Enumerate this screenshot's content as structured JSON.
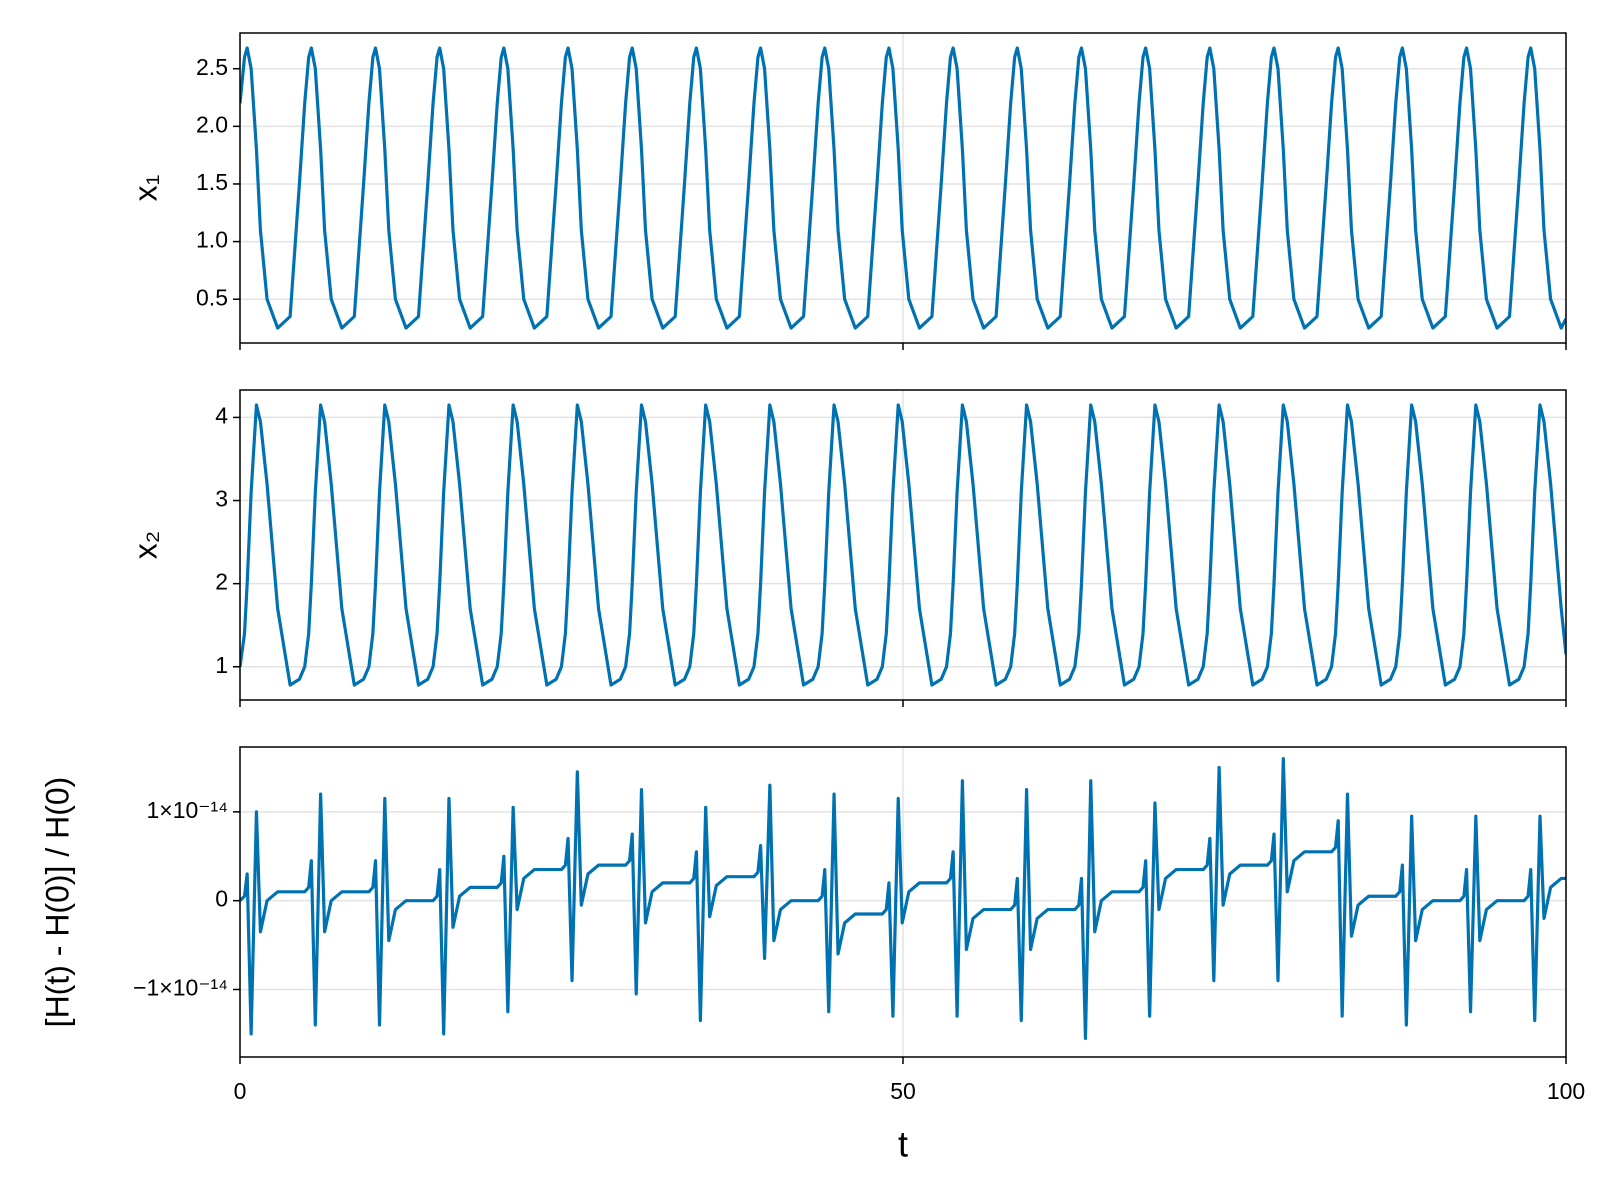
{
  "chart_data": {
    "type": "line",
    "xlabel": "t",
    "xlim": [
      0,
      100
    ],
    "xticks": [
      0,
      50,
      100
    ],
    "grid": true,
    "color": "#0072b2",
    "x": [
      0,
      0.34,
      0.54,
      0.84,
      1.24,
      1.54,
      2.04,
      2.84,
      3.78,
      4.48,
      4.88,
      5.18,
      5.38,
      5.68,
      6.08,
      6.38,
      6.88,
      7.68,
      8.62,
      9.32,
      9.72,
      10.02,
      10.22,
      10.52,
      10.92,
      11.22,
      11.72,
      12.52,
      13.46,
      14.16,
      14.56,
      14.86,
      15.06,
      15.36,
      15.76,
      16.06,
      16.56,
      17.36,
      18.3,
      19.0,
      19.4,
      19.7,
      19.9,
      20.2,
      20.6,
      20.9,
      21.4,
      22.2,
      23.14,
      23.84,
      24.24,
      24.54,
      24.74,
      25.04,
      25.44,
      25.74,
      26.24,
      27.04,
      27.98,
      28.68,
      29.08,
      29.38,
      29.58,
      29.88,
      30.28,
      30.58,
      31.08,
      31.88,
      32.82,
      33.52,
      33.92,
      34.22,
      34.42,
      34.72,
      35.12,
      35.42,
      35.92,
      36.72,
      37.66,
      38.36,
      38.76,
      39.06,
      39.26,
      39.56,
      39.96,
      40.26,
      40.76,
      41.56,
      42.5,
      43.2,
      43.6,
      43.9,
      44.1,
      44.4,
      44.8,
      45.1,
      45.6,
      46.4,
      47.34,
      48.04,
      48.44,
      48.74,
      48.94,
      49.24,
      49.64,
      49.94,
      50.44,
      51.24,
      52.18,
      52.88,
      53.28,
      53.58,
      53.78,
      54.08,
      54.48,
      54.78,
      55.28,
      56.08,
      57.02,
      57.72,
      58.12,
      58.42,
      58.62,
      58.92,
      59.32,
      59.62,
      60.12,
      60.92,
      61.86,
      62.56,
      62.96,
      63.26,
      63.46,
      63.76,
      64.16,
      64.46,
      64.96,
      65.76,
      66.7,
      67.4,
      67.8,
      68.1,
      68.3,
      68.6,
      69.0,
      69.3,
      69.8,
      70.6,
      71.54,
      72.24,
      72.64,
      72.94,
      73.14,
      73.44,
      73.84,
      74.14,
      74.64,
      75.44,
      76.38,
      77.08,
      77.48,
      77.78,
      77.98,
      78.28,
      78.68,
      78.98,
      79.48,
      80.28,
      81.22,
      81.92,
      82.32,
      82.62,
      82.82,
      83.12,
      83.52,
      83.82,
      84.32,
      85.12,
      86.06,
      86.76,
      87.16,
      87.46,
      87.66,
      87.96,
      88.36,
      88.66,
      89.16,
      89.96,
      90.9,
      91.6,
      92.0,
      92.3,
      92.5,
      92.8,
      93.2,
      93.5,
      94.0,
      94.8,
      95.74,
      96.44,
      96.84,
      97.14,
      97.34,
      97.64,
      98.04,
      98.34,
      98.84,
      99.64,
      100
    ],
    "panels": [
      {
        "ylabel": "x₁",
        "ylim": [
          0.12,
          2.81
        ],
        "yticks": [
          0.5,
          {
            "value": 1,
            "label": "1.0"
          },
          1.5,
          {
            "value": 2,
            "label": "2.0"
          },
          2.5
        ],
        "values": [
          2.2,
          2.6,
          2.68,
          2.5,
          1.8,
          1.1,
          0.5,
          0.25,
          0.35,
          1.5,
          2.2,
          2.6,
          2.68,
          2.5,
          1.8,
          1.1,
          0.5,
          0.25,
          0.35,
          1.5,
          2.2,
          2.6,
          2.68,
          2.5,
          1.8,
          1.1,
          0.5,
          0.25,
          0.35,
          1.5,
          2.2,
          2.6,
          2.68,
          2.5,
          1.8,
          1.1,
          0.5,
          0.25,
          0.35,
          1.5,
          2.2,
          2.6,
          2.68,
          2.5,
          1.8,
          1.1,
          0.5,
          0.25,
          0.35,
          1.5,
          2.2,
          2.6,
          2.68,
          2.5,
          1.8,
          1.1,
          0.5,
          0.25,
          0.35,
          1.5,
          2.2,
          2.6,
          2.68,
          2.5,
          1.8,
          1.1,
          0.5,
          0.25,
          0.35,
          1.5,
          2.2,
          2.6,
          2.68,
          2.5,
          1.8,
          1.1,
          0.5,
          0.25,
          0.35,
          1.5,
          2.2,
          2.6,
          2.68,
          2.5,
          1.8,
          1.1,
          0.5,
          0.25,
          0.35,
          1.5,
          2.2,
          2.6,
          2.68,
          2.5,
          1.8,
          1.1,
          0.5,
          0.25,
          0.35,
          1.5,
          2.2,
          2.6,
          2.68,
          2.5,
          1.8,
          1.1,
          0.5,
          0.25,
          0.35,
          1.5,
          2.2,
          2.6,
          2.68,
          2.5,
          1.8,
          1.1,
          0.5,
          0.25,
          0.35,
          1.5,
          2.2,
          2.6,
          2.68,
          2.5,
          1.8,
          1.1,
          0.5,
          0.25,
          0.35,
          1.5,
          2.2,
          2.6,
          2.68,
          2.5,
          1.8,
          1.1,
          0.5,
          0.25,
          0.35,
          1.5,
          2.2,
          2.6,
          2.68,
          2.5,
          1.8,
          1.1,
          0.5,
          0.25,
          0.35,
          1.5,
          2.2,
          2.6,
          2.68,
          2.5,
          1.8,
          1.1,
          0.5,
          0.25,
          0.35,
          1.5,
          2.2,
          2.6,
          2.68,
          2.5,
          1.8,
          1.1,
          0.5,
          0.25,
          0.35,
          1.5,
          2.2,
          2.6,
          2.68,
          2.5,
          1.8,
          1.1,
          0.5,
          0.25,
          0.35,
          1.5,
          2.2,
          2.6,
          2.68,
          2.5,
          1.8,
          1.1,
          0.5,
          0.25,
          0.35,
          1.5,
          2.2,
          2.6,
          2.68,
          2.5,
          1.8,
          1.1,
          0.5,
          0.25,
          0.35,
          1.5,
          2.2,
          2.6,
          2.68,
          2.5,
          1.8,
          1.1,
          0.5,
          0.25,
          0.33
        ]
      },
      {
        "ylabel": "x₂",
        "ylim": [
          0.6,
          4.33
        ],
        "yticks": [
          1,
          2,
          3,
          4
        ],
        "values": [
          1,
          1.4,
          2.0,
          3.1,
          4.15,
          3.95,
          3.2,
          1.7,
          0.78,
          0.85,
          1.0,
          1.4,
          2.0,
          3.1,
          4.15,
          3.95,
          3.2,
          1.7,
          0.78,
          0.85,
          1.0,
          1.4,
          2.0,
          3.1,
          4.15,
          3.95,
          3.2,
          1.7,
          0.78,
          0.85,
          1.0,
          1.4,
          2.0,
          3.1,
          4.15,
          3.95,
          3.2,
          1.7,
          0.78,
          0.85,
          1.0,
          1.4,
          2.0,
          3.1,
          4.15,
          3.95,
          3.2,
          1.7,
          0.78,
          0.85,
          1.0,
          1.4,
          2.0,
          3.1,
          4.15,
          3.95,
          3.2,
          1.7,
          0.78,
          0.85,
          1.0,
          1.4,
          2.0,
          3.1,
          4.15,
          3.95,
          3.2,
          1.7,
          0.78,
          0.85,
          1.0,
          1.4,
          2.0,
          3.1,
          4.15,
          3.95,
          3.2,
          1.7,
          0.78,
          0.85,
          1.0,
          1.4,
          2.0,
          3.1,
          4.15,
          3.95,
          3.2,
          1.7,
          0.78,
          0.85,
          1.0,
          1.4,
          2.0,
          3.1,
          4.15,
          3.95,
          3.2,
          1.7,
          0.78,
          0.85,
          1.0,
          1.4,
          2.0,
          3.1,
          4.15,
          3.95,
          3.2,
          1.7,
          0.78,
          0.85,
          1.0,
          1.4,
          2.0,
          3.1,
          4.15,
          3.95,
          3.2,
          1.7,
          0.78,
          0.85,
          1.0,
          1.4,
          2.0,
          3.1,
          4.15,
          3.95,
          3.2,
          1.7,
          0.78,
          0.85,
          1.0,
          1.4,
          2.0,
          3.1,
          4.15,
          3.95,
          3.2,
          1.7,
          0.78,
          0.85,
          1.0,
          1.4,
          2.0,
          3.1,
          4.15,
          3.95,
          3.2,
          1.7,
          0.78,
          0.85,
          1.0,
          1.4,
          2.0,
          3.1,
          4.15,
          3.95,
          3.2,
          1.7,
          0.78,
          0.85,
          1.0,
          1.4,
          2.0,
          3.1,
          4.15,
          3.95,
          3.2,
          1.7,
          0.78,
          0.85,
          1.0,
          1.4,
          2.0,
          3.1,
          4.15,
          3.95,
          3.2,
          1.7,
          0.78,
          0.85,
          1.0,
          1.4,
          2.0,
          3.1,
          4.15,
          3.95,
          3.2,
          1.7,
          0.78,
          0.85,
          1.0,
          1.4,
          2.0,
          3.1,
          4.15,
          3.95,
          3.2,
          1.7,
          0.78,
          0.85,
          1.0,
          1.4,
          2.0,
          3.1,
          4.15,
          3.95,
          3.2,
          1.7,
          1.15
        ]
      },
      {
        "ylabel": "[H(t) - H(0)] / H(0)",
        "ylim": [
          -1.76e-14,
          1.73e-14
        ],
        "yticks": [
          {
            "value": -1e-14,
            "label": "−1×10⁻¹⁴"
          },
          0,
          {
            "value": 1e-14,
            "label": "1×10⁻¹⁴"
          }
        ],
        "values": [
          0,
          5e-16,
          3e-15,
          -1.5e-14,
          1e-14,
          -3.5e-15,
          0,
          1e-15,
          1e-15,
          1e-15,
          1e-15,
          1.5e-15,
          4.5e-15,
          -1.4e-14,
          1.2e-14,
          -3.5e-15,
          0,
          1e-15,
          1e-15,
          1e-15,
          1e-15,
          1.5e-15,
          4.5e-15,
          -1.4e-14,
          1.15e-14,
          -4.5e-15,
          -1e-15,
          0,
          0,
          0,
          0,
          5e-16,
          3.5e-15,
          -1.5e-14,
          1.15e-14,
          -3e-15,
          5e-16,
          1.5e-15,
          1.5e-15,
          1.5e-15,
          1.5e-15,
          2e-15,
          5e-15,
          -1.25e-14,
          1.05e-14,
          -1e-15,
          2.5e-15,
          3.5e-15,
          3.5e-15,
          3.5e-15,
          3.5e-15,
          4e-15,
          7e-15,
          -9e-15,
          1.45e-14,
          -5e-16,
          3e-15,
          4e-15,
          4e-15,
          4e-15,
          4e-15,
          4.5e-15,
          7.5e-15,
          -1.05e-14,
          1.25e-14,
          -2.5e-15,
          1e-15,
          2e-15,
          2e-15,
          2e-15,
          2e-15,
          2.5e-15,
          5.5e-15,
          -1.35e-14,
          1.05e-14,
          -1.8e-15,
          1.7e-15,
          2.7e-15,
          2.7e-15,
          2.7e-15,
          2.7e-15,
          3.2e-15,
          6.2e-15,
          -6.5e-15,
          1.3e-14,
          -4.5e-15,
          -1e-15,
          0,
          0,
          0,
          0,
          5e-16,
          3.5e-15,
          -1.25e-14,
          1.2e-14,
          -6e-15,
          -2.5e-15,
          -1.5e-15,
          -1.5e-15,
          -1.5e-15,
          -1.5e-15,
          -1e-15,
          2e-15,
          -1.3e-14,
          1.15e-14,
          -2.5e-15,
          1e-15,
          2e-15,
          2e-15,
          2e-15,
          2e-15,
          2.5e-15,
          5.5e-15,
          -1.3e-14,
          1.35e-14,
          -5.5e-15,
          -2e-15,
          -1e-15,
          -1e-15,
          -1e-15,
          -1e-15,
          -5e-16,
          2.5e-15,
          -1.35e-14,
          1.25e-14,
          -5.5e-15,
          -2e-15,
          -1e-15,
          -1e-15,
          -1e-15,
          -1e-15,
          -5e-16,
          2.5e-15,
          -1.55e-14,
          1.35e-14,
          -3.5e-15,
          0,
          1e-15,
          1e-15,
          1e-15,
          1e-15,
          1.5e-15,
          4.5e-15,
          -1.3e-14,
          1.1e-14,
          -1e-15,
          2.5e-15,
          3.5e-15,
          3.5e-15,
          3.5e-15,
          3.5e-15,
          4e-15,
          7e-15,
          -9e-15,
          1.5e-14,
          -5e-16,
          3e-15,
          4e-15,
          4e-15,
          4e-15,
          4e-15,
          4.5e-15,
          7.5e-15,
          -9e-15,
          1.6e-14,
          1e-15,
          4.5e-15,
          5.5e-15,
          5.5e-15,
          5.5e-15,
          5.5e-15,
          6e-15,
          9e-15,
          -1.3e-14,
          1.2e-14,
          -4e-15,
          -5e-16,
          5e-16,
          5e-16,
          5e-16,
          5e-16,
          1e-15,
          4e-15,
          -1.4e-14,
          9.5e-15,
          -4.5e-15,
          -1e-15,
          0,
          0,
          0,
          0,
          5e-16,
          3.5e-15,
          -1.25e-14,
          9.5e-15,
          -4.5e-15,
          -1e-15,
          0,
          0,
          0,
          0,
          5e-16,
          3.5e-15,
          -1.35e-14,
          9.5e-15,
          -2e-15,
          1.5e-15,
          2.5e-15,
          2.5e-15
        ]
      }
    ]
  }
}
